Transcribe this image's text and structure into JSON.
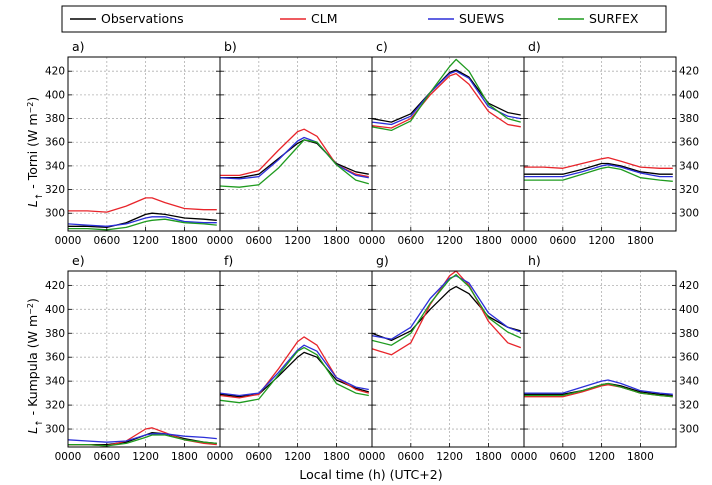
{
  "colors": {
    "Observations": "#000000",
    "CLM": "#e8252b",
    "SUEWS": "#2b2fd9",
    "SURFEX": "#1f9b1f"
  },
  "legend": [
    "Observations",
    "CLM",
    "SUEWS",
    "SURFEX"
  ],
  "xlabel": "Local time (h) (UTC+2)",
  "row_ylabels": [
    {
      "main": "L",
      "sub": "↑",
      "rest": " - Torni (W m",
      "sup": "−2",
      "close": ")"
    },
    {
      "main": "L",
      "sub": "↑",
      "rest": " - Kumpula (W m",
      "sup": "−2",
      "close": ")"
    }
  ],
  "chart_data": [
    {
      "type": "line",
      "panel": "a)",
      "xlim": [
        0,
        2330
      ],
      "ylim": [
        285,
        432
      ],
      "grid": true,
      "xticks": [
        "0000",
        "0600",
        "1200",
        "1800"
      ],
      "yticks": [
        300,
        320,
        340,
        360,
        380,
        400,
        420
      ],
      "x": [
        "0000",
        "0300",
        "0600",
        "0900",
        "1200",
        "1300",
        "1500",
        "1800",
        "2100",
        "2300"
      ],
      "series": [
        {
          "name": "Observations",
          "values": [
            289,
            289,
            288,
            292,
            299,
            300,
            299,
            296,
            295,
            294
          ]
        },
        {
          "name": "CLM",
          "values": [
            302,
            302,
            301,
            306,
            313,
            313,
            309,
            304,
            303,
            303
          ]
        },
        {
          "name": "SUEWS",
          "values": [
            291,
            290,
            289,
            291,
            296,
            297,
            297,
            293,
            292,
            292
          ]
        },
        {
          "name": "SURFEX",
          "values": [
            287,
            287,
            286,
            288,
            293,
            294,
            295,
            292,
            291,
            290
          ]
        }
      ]
    },
    {
      "type": "line",
      "panel": "b)",
      "xlim": [
        0,
        2330
      ],
      "ylim": [
        285,
        432
      ],
      "grid": true,
      "xticks": [
        "0000",
        "0600",
        "1200",
        "1800"
      ],
      "yticks": [
        300,
        320,
        340,
        360,
        380,
        400,
        420
      ],
      "x": [
        "0000",
        "0300",
        "0600",
        "0900",
        "1200",
        "1300",
        "1500",
        "1800",
        "2100",
        "2300"
      ],
      "series": [
        {
          "name": "Observations",
          "values": [
            330,
            330,
            333,
            346,
            359,
            362,
            359,
            342,
            335,
            333
          ]
        },
        {
          "name": "CLM",
          "values": [
            332,
            332,
            336,
            353,
            369,
            371,
            365,
            341,
            333,
            331
          ]
        },
        {
          "name": "SUEWS",
          "values": [
            330,
            329,
            331,
            345,
            361,
            364,
            360,
            341,
            332,
            330
          ]
        },
        {
          "name": "SURFEX",
          "values": [
            323,
            322,
            324,
            338,
            356,
            362,
            360,
            341,
            328,
            325
          ]
        }
      ]
    },
    {
      "type": "line",
      "panel": "c)",
      "xlim": [
        0,
        2330
      ],
      "ylim": [
        285,
        432
      ],
      "grid": true,
      "xticks": [
        "0000",
        "0600",
        "1200",
        "1800"
      ],
      "yticks": [
        300,
        320,
        340,
        360,
        380,
        400,
        420
      ],
      "x": [
        "0000",
        "0300",
        "0600",
        "0900",
        "1200",
        "1300",
        "1500",
        "1800",
        "2100",
        "2300"
      ],
      "series": [
        {
          "name": "Observations",
          "values": [
            380,
            377,
            384,
            402,
            419,
            421,
            415,
            393,
            385,
            383
          ]
        },
        {
          "name": "CLM",
          "values": [
            374,
            372,
            380,
            400,
            416,
            418,
            409,
            386,
            375,
            373
          ]
        },
        {
          "name": "SUEWS",
          "values": [
            377,
            375,
            382,
            402,
            418,
            420,
            414,
            390,
            382,
            380
          ]
        },
        {
          "name": "SURFEX",
          "values": [
            373,
            370,
            378,
            402,
            424,
            430,
            420,
            392,
            380,
            377
          ]
        }
      ]
    },
    {
      "type": "line",
      "panel": "d)",
      "xlim": [
        0,
        2330
      ],
      "ylim": [
        285,
        432
      ],
      "grid": true,
      "xticks": [
        "0000",
        "0600",
        "1200",
        "1800"
      ],
      "yticks": [
        300,
        320,
        340,
        360,
        380,
        400,
        420
      ],
      "x": [
        "0000",
        "0300",
        "0600",
        "0900",
        "1200",
        "1300",
        "1500",
        "1800",
        "2100",
        "2300"
      ],
      "series": [
        {
          "name": "Observations",
          "values": [
            333,
            333,
            333,
            337,
            342,
            342,
            340,
            335,
            333,
            333
          ]
        },
        {
          "name": "CLM",
          "values": [
            339,
            339,
            338,
            342,
            346,
            347,
            344,
            339,
            338,
            338
          ]
        },
        {
          "name": "SUEWS",
          "values": [
            331,
            331,
            331,
            335,
            340,
            341,
            339,
            334,
            331,
            331
          ]
        },
        {
          "name": "SURFEX",
          "values": [
            328,
            328,
            328,
            333,
            338,
            339,
            337,
            330,
            328,
            327
          ]
        }
      ]
    },
    {
      "type": "line",
      "panel": "e)",
      "xlim": [
        0,
        2330
      ],
      "ylim": [
        285,
        432
      ],
      "grid": true,
      "xticks": [
        "0000",
        "0600",
        "1200",
        "1800"
      ],
      "yticks": [
        300,
        320,
        340,
        360,
        380,
        400,
        420
      ],
      "x": [
        "0000",
        "0300",
        "0600",
        "0900",
        "1200",
        "1300",
        "1500",
        "1800",
        "2100",
        "2300"
      ],
      "series": [
        {
          "name": "Observations",
          "values": [
            287,
            287,
            287,
            289,
            295,
            297,
            296,
            292,
            289,
            288
          ]
        },
        {
          "name": "CLM",
          "values": [
            287,
            287,
            286,
            290,
            300,
            301,
            297,
            291,
            288,
            287
          ]
        },
        {
          "name": "SUEWS",
          "values": [
            291,
            290,
            289,
            290,
            295,
            296,
            296,
            294,
            293,
            292
          ]
        },
        {
          "name": "SURFEX",
          "values": [
            287,
            287,
            286,
            288,
            293,
            295,
            295,
            291,
            289,
            288
          ]
        }
      ]
    },
    {
      "type": "line",
      "panel": "f)",
      "xlim": [
        0,
        2330
      ],
      "ylim": [
        285,
        432
      ],
      "grid": true,
      "xticks": [
        "0000",
        "0600",
        "1200",
        "1800"
      ],
      "yticks": [
        300,
        320,
        340,
        360,
        380,
        400,
        420
      ],
      "x": [
        "0000",
        "0300",
        "0600",
        "0900",
        "1200",
        "1300",
        "1500",
        "1800",
        "2100",
        "2300"
      ],
      "series": [
        {
          "name": "Observations",
          "values": [
            329,
            327,
            329,
            344,
            360,
            364,
            360,
            341,
            334,
            331
          ]
        },
        {
          "name": "CLM",
          "values": [
            328,
            326,
            329,
            350,
            373,
            377,
            370,
            343,
            333,
            330
          ]
        },
        {
          "name": "SUEWS",
          "values": [
            330,
            328,
            330,
            347,
            366,
            370,
            365,
            343,
            335,
            333
          ]
        },
        {
          "name": "SURFEX",
          "values": [
            324,
            322,
            325,
            345,
            365,
            368,
            362,
            338,
            330,
            328
          ]
        }
      ]
    },
    {
      "type": "line",
      "panel": "g)",
      "xlim": [
        0,
        2330
      ],
      "ylim": [
        285,
        432
      ],
      "grid": true,
      "xticks": [
        "0000",
        "0600",
        "1200",
        "1800"
      ],
      "yticks": [
        300,
        320,
        340,
        360,
        380,
        400,
        420
      ],
      "x": [
        "0000",
        "0300",
        "0600",
        "0900",
        "1200",
        "1300",
        "1500",
        "1800",
        "2100",
        "2300"
      ],
      "series": [
        {
          "name": "Observations",
          "values": [
            380,
            374,
            382,
            400,
            416,
            419,
            413,
            394,
            385,
            382
          ]
        },
        {
          "name": "CLM",
          "values": [
            367,
            362,
            372,
            404,
            428,
            432,
            420,
            390,
            372,
            368
          ]
        },
        {
          "name": "SUEWS",
          "values": [
            378,
            375,
            385,
            409,
            426,
            428,
            422,
            397,
            385,
            381
          ]
        },
        {
          "name": "SURFEX",
          "values": [
            374,
            370,
            380,
            405,
            425,
            429,
            419,
            393,
            381,
            376
          ]
        }
      ]
    },
    {
      "type": "line",
      "panel": "h)",
      "xlim": [
        0,
        2330
      ],
      "ylim": [
        285,
        432
      ],
      "grid": true,
      "xticks": [
        "0000",
        "0600",
        "1200",
        "1800"
      ],
      "yticks": [
        300,
        320,
        340,
        360,
        380,
        400,
        420
      ],
      "x": [
        "0000",
        "0300",
        "0600",
        "0900",
        "1200",
        "1300",
        "1500",
        "1800",
        "2100",
        "2300"
      ],
      "series": [
        {
          "name": "Observations",
          "values": [
            329,
            329,
            329,
            332,
            337,
            338,
            336,
            331,
            329,
            328
          ]
        },
        {
          "name": "CLM",
          "values": [
            327,
            327,
            327,
            331,
            336,
            337,
            335,
            330,
            328,
            327
          ]
        },
        {
          "name": "SUEWS",
          "values": [
            330,
            330,
            330,
            335,
            340,
            341,
            338,
            332,
            330,
            329
          ]
        },
        {
          "name": "SURFEX",
          "values": [
            328,
            328,
            328,
            332,
            337,
            338,
            335,
            330,
            328,
            327
          ]
        }
      ]
    }
  ]
}
